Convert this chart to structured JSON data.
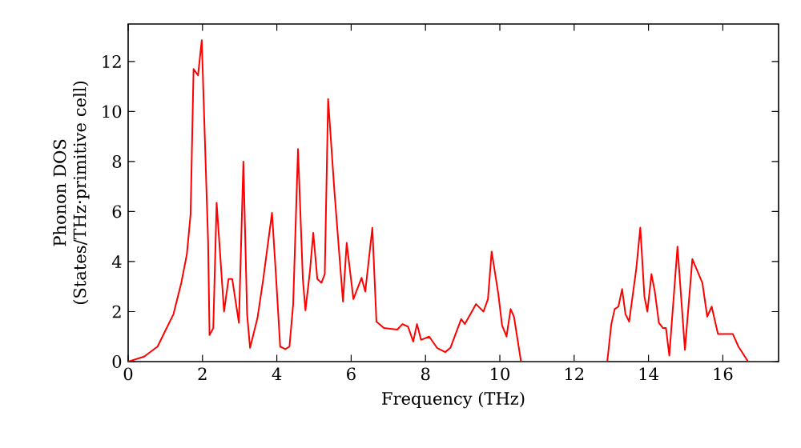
{
  "chart_data": {
    "type": "line",
    "xlabel": "Frequency (THz)",
    "ylabel": "Phonon DOS (States/THz·primitive cell)",
    "xlim": [
      0,
      17.5
    ],
    "ylim": [
      0,
      13.5
    ],
    "xticks": [
      0,
      2,
      4,
      6,
      8,
      10,
      12,
      14,
      16
    ],
    "yticks": [
      0,
      2,
      4,
      6,
      8,
      10,
      12
    ],
    "grid": false,
    "marker": "none",
    "line_style": "solid",
    "series": [
      {
        "color": "#ff0000",
        "x": [
          0,
          0.43,
          0.79,
          1.22,
          1.43,
          1.58,
          1.68,
          1.76,
          1.88,
          1.98,
          2.15,
          2.19,
          2.29,
          2.38,
          2.58,
          2.7,
          2.8,
          2.98,
          3.1,
          3.2,
          3.28,
          3.48,
          3.63,
          3.87,
          3.97,
          4.09,
          4.23,
          4.34,
          4.44,
          4.57,
          4.7,
          4.77,
          4.89,
          4.98,
          5.09,
          5.2,
          5.29,
          5.38,
          5.55,
          5.78,
          5.88,
          6.06,
          6.28,
          6.38,
          6.57,
          6.68,
          6.88,
          7.24,
          7.38,
          7.53,
          7.67,
          7.77,
          7.88,
          8.1,
          8.31,
          8.53,
          8.67,
          8.96,
          9.06,
          9.36,
          9.56,
          9.68,
          9.78,
          9.96,
          10.06,
          10.18,
          10.29,
          10.38,
          10.57,
          12.89,
          13.0,
          13.09,
          13.19,
          13.29,
          13.38,
          13.48,
          13.67,
          13.78,
          13.89,
          13.97,
          14.08,
          14.17,
          14.28,
          14.39,
          14.47,
          14.56,
          14.78,
          14.98,
          15.18,
          15.45,
          15.58,
          15.7,
          15.87,
          16.27,
          16.42,
          16.68,
          17.42
        ],
        "values": [
          0,
          0.2,
          0.6,
          1.9,
          3.15,
          4.3,
          5.9,
          11.7,
          11.45,
          12.85,
          4.85,
          1.06,
          1.34,
          6.35,
          2.0,
          3.3,
          3.3,
          1.55,
          8.0,
          1.9,
          0.55,
          1.75,
          3.25,
          5.95,
          3.6,
          0.6,
          0.5,
          0.6,
          2.3,
          8.5,
          3.3,
          2.05,
          3.6,
          5.15,
          3.3,
          3.15,
          3.5,
          10.5,
          6.8,
          2.4,
          4.75,
          2.5,
          3.35,
          2.8,
          5.35,
          1.6,
          1.34,
          1.28,
          1.5,
          1.4,
          0.8,
          1.5,
          0.87,
          1.0,
          0.55,
          0.38,
          0.55,
          1.7,
          1.5,
          2.3,
          2.0,
          2.5,
          4.4,
          2.7,
          1.45,
          1.0,
          2.1,
          1.8,
          0,
          0,
          1.5,
          2.1,
          2.2,
          2.9,
          1.9,
          1.6,
          3.7,
          5.36,
          2.6,
          2.0,
          3.5,
          2.8,
          1.55,
          1.34,
          1.34,
          0.24,
          4.6,
          0.47,
          4.1,
          3.15,
          1.8,
          2.2,
          1.1,
          1.1,
          0.6,
          0,
          0
        ]
      }
    ]
  }
}
